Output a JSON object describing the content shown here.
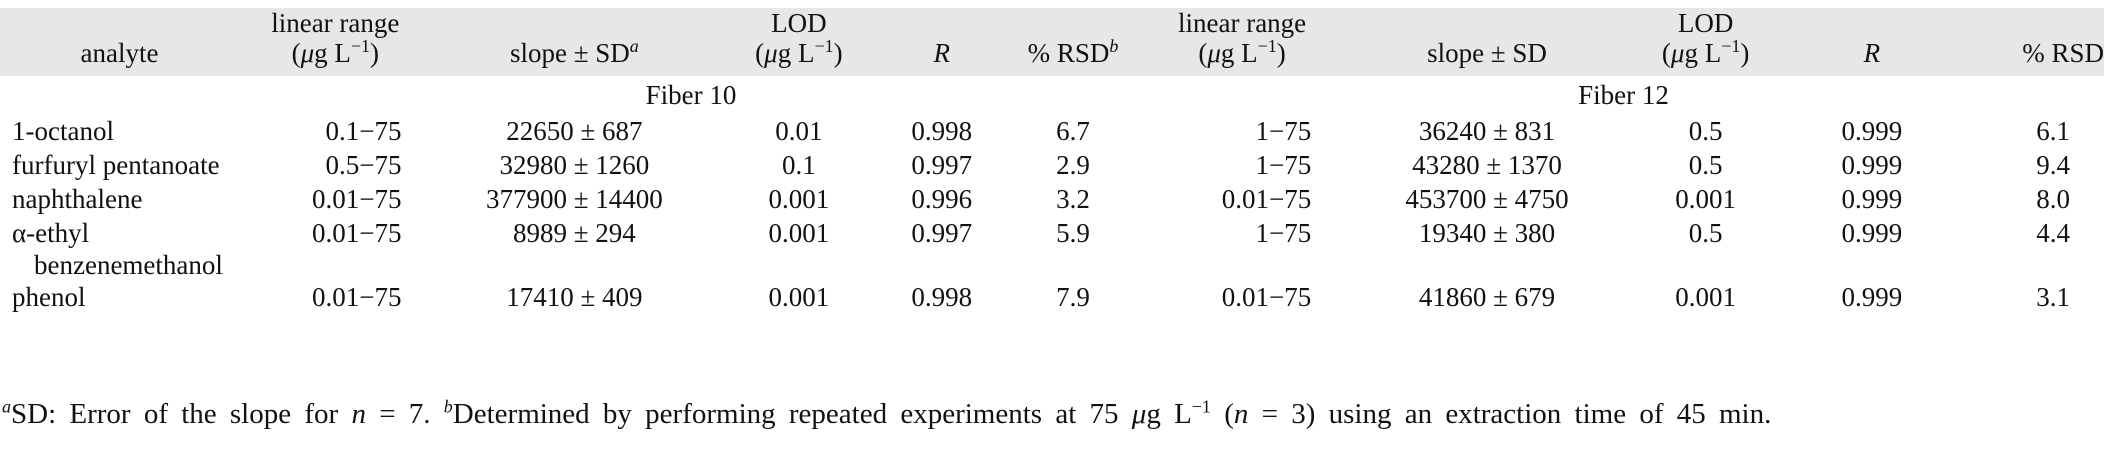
{
  "table": {
    "headers": {
      "analyte": "analyte",
      "linear_range_l1": "linear range",
      "linear_range_l2_pre": "(",
      "mu": "μ",
      "linear_range_l2_post": "g L",
      "unit_exp": "−1",
      "close_paren": ")",
      "slope_sd": "slope ± SD",
      "slope_note": "a",
      "lod_l1": "LOD",
      "R": "R",
      "rsd": "% RSD",
      "rsd_note": "b",
      "slope_sd_2": "slope ± SD",
      "rsd_2": "% RSD"
    },
    "groups": [
      "Fiber 10",
      "Fiber 12"
    ],
    "rows": [
      {
        "analyte": "1-octanol",
        "analyte_2": "",
        "f10_range": "0.1−75",
        "f10_slope": "22650 ± 687",
        "f10_lod": "0.01",
        "f10_R": "0.998",
        "f10_rsd": "6.7",
        "f12_range": "1−75",
        "f12_slope": "36240 ± 831",
        "f12_lod": "0.5",
        "f12_R": "0.999",
        "f12_rsd": "6.1"
      },
      {
        "analyte": "furfuryl pentanoate",
        "analyte_2": "",
        "f10_range": "0.5−75",
        "f10_slope": "32980 ± 1260",
        "f10_lod": "0.1",
        "f10_R": "0.997",
        "f10_rsd": "2.9",
        "f12_range": "1−75",
        "f12_slope": "43280 ± 1370",
        "f12_lod": "0.5",
        "f12_R": "0.999",
        "f12_rsd": "9.4"
      },
      {
        "analyte": "naphthalene",
        "analyte_2": "",
        "f10_range": "0.01−75",
        "f10_slope": "377900 ± 14400",
        "f10_lod": "0.001",
        "f10_R": "0.996",
        "f10_rsd": "3.2",
        "f12_range": "0.01−75",
        "f12_slope": "453700 ± 4750",
        "f12_lod": "0.001",
        "f12_R": "0.999",
        "f12_rsd": "8.0"
      },
      {
        "analyte": "α-ethyl",
        "analyte_2": "benzenemethanol",
        "f10_range": "0.01−75",
        "f10_slope": "8989 ± 294",
        "f10_lod": "0.001",
        "f10_R": "0.997",
        "f10_rsd": "5.9",
        "f12_range": "1−75",
        "f12_slope": "19340 ± 380",
        "f12_lod": "0.5",
        "f12_R": "0.999",
        "f12_rsd": "4.4"
      },
      {
        "analyte": "phenol",
        "analyte_2": "",
        "f10_range": "0.01−75",
        "f10_slope": "17410 ± 409",
        "f10_lod": "0.001",
        "f10_R": "0.998",
        "f10_rsd": "7.9",
        "f12_range": "0.01−75",
        "f12_slope": "41860 ± 679",
        "f12_lod": "0.001",
        "f12_R": "0.999",
        "f12_rsd": "3.1"
      }
    ]
  },
  "footnote": {
    "a_mark": "a",
    "a_text_1": "SD: Error of the slope for ",
    "a_n": "n",
    "a_text_2": " = 7. ",
    "b_mark": "b",
    "b_text_1": "Determined by performing repeated experiments at 75 ",
    "b_mu": "μ",
    "b_text_2": "g L",
    "b_exp": "−1",
    "b_text_3": " (",
    "b_n": "n",
    "b_text_4": " = 3) using an extraction time of 45 min."
  }
}
